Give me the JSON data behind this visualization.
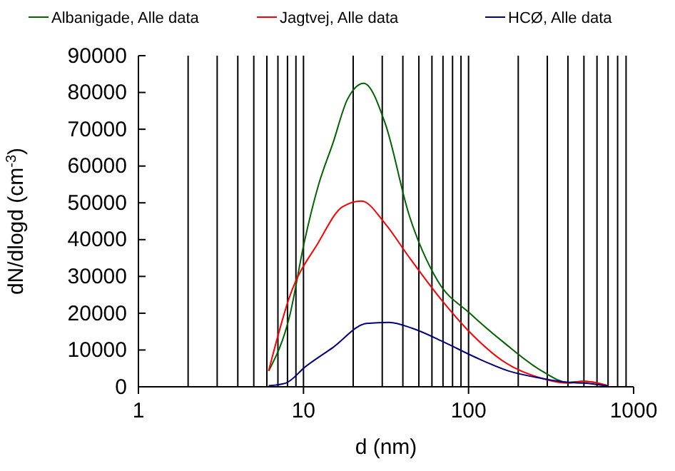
{
  "chart_data": {
    "type": "line",
    "xlabel": "d (nm)",
    "ylabel": "dN/dlogd (cm$^{-3}$)",
    "log": "x",
    "xlim": [
      1,
      1000
    ],
    "xticks": [
      1,
      {
        "value": 2,
        "label": null
      },
      {
        "value": 3,
        "label": null
      },
      {
        "value": 4,
        "label": null
      },
      {
        "value": 5,
        "label": null
      },
      {
        "value": 6,
        "label": null
      },
      {
        "value": 7,
        "label": null
      },
      {
        "value": 8,
        "label": null
      },
      {
        "value": 9,
        "label": null
      },
      10,
      {
        "value": 20,
        "label": null
      },
      {
        "value": 30,
        "label": null
      },
      {
        "value": 40,
        "label": null
      },
      {
        "value": 50,
        "label": null
      },
      {
        "value": 60,
        "label": null
      },
      {
        "value": 70,
        "label": null
      },
      {
        "value": 80,
        "label": null
      },
      {
        "value": 90,
        "label": null
      },
      100,
      {
        "value": 200,
        "label": null
      },
      {
        "value": 300,
        "label": null
      },
      {
        "value": 400,
        "label": null
      },
      {
        "value": 500,
        "label": null
      },
      {
        "value": 600,
        "label": null
      },
      {
        "value": 700,
        "label": null
      },
      {
        "value": 800,
        "label": null
      },
      {
        "value": 900,
        "label": null
      },
      1000
    ],
    "ylim": [
      0,
      90000
    ],
    "yticks": [
      0,
      10000,
      20000,
      30000,
      40000,
      50000,
      60000,
      70000,
      80000,
      90000
    ],
    "grid": "x",
    "legend": "top",
    "marker": "none",
    "line_style": "solid",
    "series": [
      {
        "name": "Albanigade, Alle data",
        "color": "#006400",
        "x": [
          6.15,
          8.3,
          10.1,
          12.3,
          15.1,
          18.4,
          23.2,
          31.3,
          43.5,
          65,
          103,
          164,
          278,
          400,
          500,
          700
        ],
        "values": [
          4300,
          19800,
          39200,
          54700,
          66300,
          78000,
          82500,
          71500,
          46900,
          28800,
          19800,
          12000,
          4300,
          1200,
          1500,
          300
        ]
      },
      {
        "name": "Jagtvej, Alle data",
        "color": "#ff0000",
        "x": [
          6.15,
          8.3,
          12.3,
          17.2,
          22.4,
          31.3,
          43.5,
          65,
          103,
          164,
          278,
          400,
          500,
          700
        ],
        "values": [
          4300,
          24900,
          39200,
          48900,
          50500,
          44300,
          35300,
          24900,
          14600,
          6800,
          2300,
          1000,
          1500,
          300
        ]
      },
      {
        "name": "HCØ, Alle data",
        "color": "#000080",
        "x": [
          6.15,
          7.8,
          10.3,
          15.1,
          24,
          33,
          45.6,
          72,
          109,
          175,
          278,
          400,
          500,
          700
        ],
        "values": [
          300,
          1000,
          5500,
          10700,
          17200,
          17500,
          15900,
          12000,
          8100,
          4300,
          2300,
          1200,
          1000,
          200
        ]
      }
    ]
  }
}
